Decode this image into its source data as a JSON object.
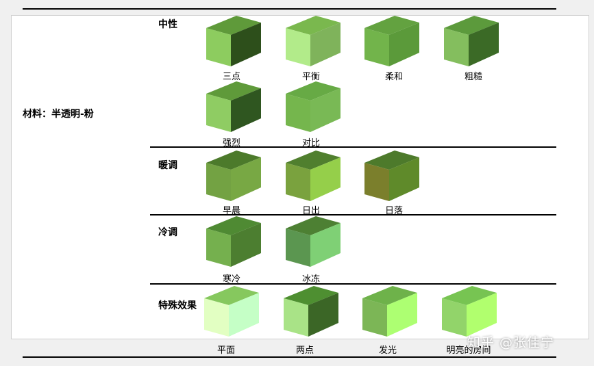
{
  "material_label": "材料：半透明-粉",
  "sections": [
    {
      "title": "中性",
      "items": [
        {
          "label": "三点",
          "colors": {
            "top": "#5f9a3a",
            "front": "#8dcc5f",
            "side": "#2d4f1b"
          }
        },
        {
          "label": "平衡",
          "colors": {
            "top": "#7ab84e",
            "front": "#b2eb8a",
            "side": "#7fb35b"
          }
        },
        {
          "label": "柔和",
          "colors": {
            "top": "#63a240",
            "front": "#72b44b",
            "side": "#5b9a3a"
          }
        },
        {
          "label": "粗糙",
          "colors": {
            "top": "#5c9a3c",
            "front": "#84be5e",
            "side": "#3b6a26"
          }
        },
        {
          "label": "强烈",
          "colors": {
            "top": "#5f9a3a",
            "front": "#8fcc63",
            "side": "#2f5620"
          }
        },
        {
          "label": "对比",
          "colors": {
            "top": "#67aa45",
            "front": "#75b64d",
            "side": "#79b955"
          }
        }
      ]
    },
    {
      "title": "暖调",
      "items": [
        {
          "label": "早晨",
          "colors": {
            "top": "#4c7a2b",
            "front": "#73a243",
            "side": "#78a844"
          }
        },
        {
          "label": "日出",
          "colors": {
            "top": "#507f2e",
            "front": "#7aa23e",
            "side": "#95cf4a"
          }
        },
        {
          "label": "日落",
          "colors": {
            "top": "#4d7a2b",
            "front": "#7b7f2c",
            "side": "#5f8a2a"
          }
        }
      ]
    },
    {
      "title": "冷调",
      "items": [
        {
          "label": "寒冷",
          "colors": {
            "top": "#4f8a33",
            "front": "#75b04e",
            "side": "#4c7e30"
          }
        },
        {
          "label": "冰冻",
          "colors": {
            "top": "#4d8033",
            "front": "#5b9650",
            "side": "#7fd075"
          }
        }
      ]
    },
    {
      "title": "特殊效果",
      "items": [
        {
          "label": "平面",
          "colors": {
            "top": "#86c85e",
            "front": "#e2ffc2",
            "side": "#c5ffc6"
          }
        },
        {
          "label": "两点",
          "colors": {
            "top": "#4e8f31",
            "front": "#a9e387",
            "side": "#3b6626"
          }
        },
        {
          "label": "发光",
          "colors": {
            "top": "#6eb24a",
            "front": "#7cb656",
            "side": "#adff72"
          }
        },
        {
          "label": "明亮的房间",
          "colors": {
            "top": "#77c452",
            "front": "#92d46a",
            "side": "#b1ff6e"
          }
        }
      ]
    }
  ],
  "watermark": "知乎 @张佳宁"
}
